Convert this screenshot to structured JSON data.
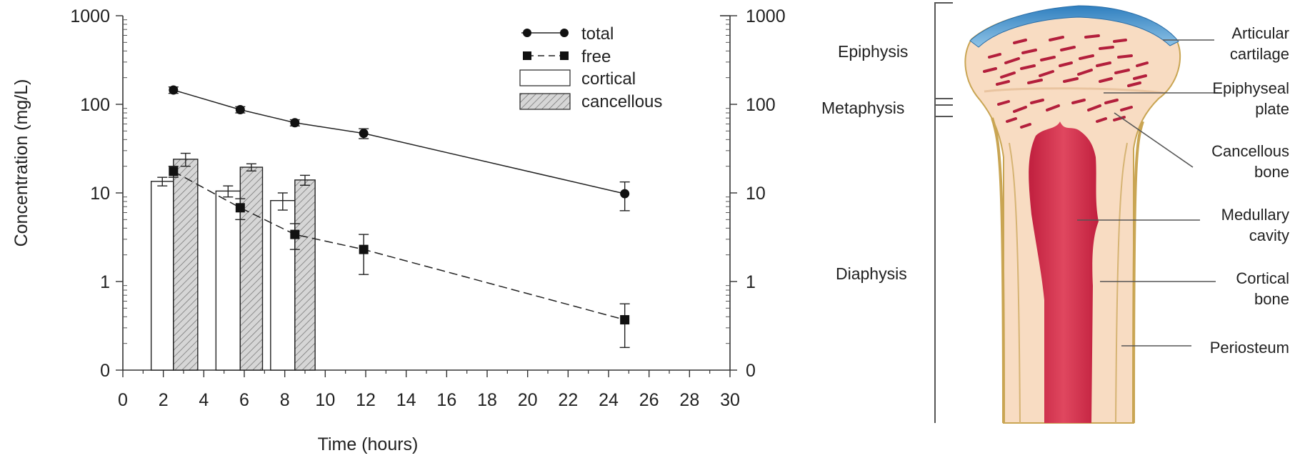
{
  "chart_data": {
    "type": "bar",
    "title": "",
    "xlabel": "Time (hours)",
    "ylabel": "Concentration (mg/L)",
    "xlim": [
      0,
      30
    ],
    "x_ticks": [
      "0",
      "2",
      "4",
      "6",
      "8",
      "10",
      "12",
      "14",
      "16",
      "18",
      "20",
      "22",
      "24",
      "26",
      "28",
      "30"
    ],
    "y_scale": "log",
    "y_ticks": [
      "0",
      "1",
      "10",
      "100",
      "1000"
    ],
    "y_ticks_right": [
      "0",
      "1",
      "10",
      "100",
      "1000"
    ],
    "grid": false,
    "legend_position": "top-right",
    "series": [
      {
        "name": "total",
        "kind": "line",
        "marker": "circle",
        "line_style": "solid",
        "points": [
          {
            "x": 2.5,
            "y": 145,
            "err": 12
          },
          {
            "x": 5.8,
            "y": 87,
            "err": 7
          },
          {
            "x": 8.5,
            "y": 62,
            "err": 5
          },
          {
            "x": 11.9,
            "y": 47,
            "err": 6
          },
          {
            "x": 24.8,
            "y": 9.8,
            "err": 3.5
          }
        ]
      },
      {
        "name": "free",
        "kind": "line",
        "marker": "square",
        "line_style": "dashed",
        "points": [
          {
            "x": 2.5,
            "y": 17.5,
            "err": 2.5
          },
          {
            "x": 5.8,
            "y": 6.8,
            "err": 1.8
          },
          {
            "x": 8.5,
            "y": 3.4,
            "err": 1.1
          },
          {
            "x": 11.9,
            "y": 2.3,
            "err": 1.1
          },
          {
            "x": 24.8,
            "y": 0.37,
            "err": 0.19
          }
        ]
      },
      {
        "name": "cortical",
        "kind": "bar",
        "fill": "#ffffff",
        "bars": [
          {
            "x_from": 1.4,
            "x_to": 2.5,
            "y": 13.5,
            "err": 1.5
          },
          {
            "x_from": 4.6,
            "x_to": 5.8,
            "y": 10.5,
            "err": 1.5
          },
          {
            "x_from": 7.3,
            "x_to": 8.5,
            "y": 8.2,
            "err": 1.8
          }
        ]
      },
      {
        "name": "cancellous",
        "kind": "bar",
        "fill": "hatched",
        "bars": [
          {
            "x_from": 2.5,
            "x_to": 3.7,
            "y": 24,
            "err": 4
          },
          {
            "x_from": 5.8,
            "x_to": 6.9,
            "y": 19.5,
            "err": 1.8
          },
          {
            "x_from": 8.5,
            "x_to": 9.5,
            "y": 14,
            "err": 1.8
          }
        ]
      }
    ]
  },
  "diagram": {
    "left_labels": [
      "Epiphysis",
      "Metaphysis",
      "Diaphysis"
    ],
    "right_labels": [
      "Articular\ncartilage",
      "Epiphyseal\nplate",
      "Cancellous\nbone",
      "Medullary\ncavity",
      "Cortical\nbone",
      "Periosteum"
    ],
    "colors": {
      "cartilage": "#4a8fc4",
      "bone": "#f8dcc2",
      "marrow": "#d52a48",
      "periosteum": "#c9a553",
      "line": "#555555"
    }
  }
}
